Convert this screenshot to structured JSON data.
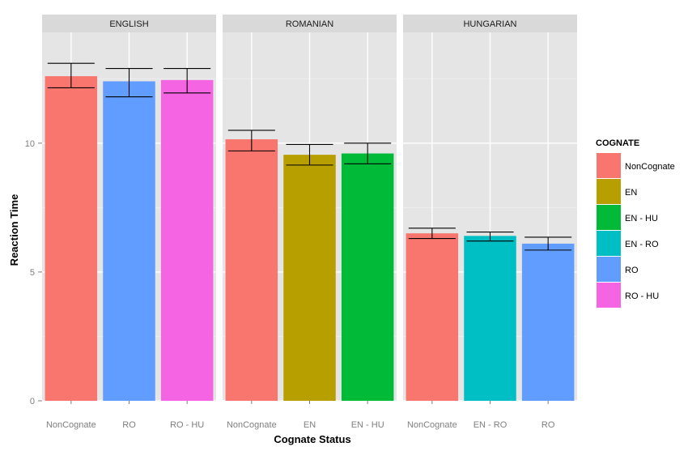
{
  "chart_data": {
    "type": "bar",
    "xlabel": "Cognate Status",
    "ylabel": "Reaction Time",
    "ylim": [
      0,
      14.3
    ],
    "yticks": [
      0,
      5,
      10
    ],
    "grid": true,
    "legend": {
      "title": "COGNATE",
      "position": "right",
      "entries": [
        {
          "label": "NonCognate",
          "color": "#F8766D"
        },
        {
          "label": "EN",
          "color": "#B79F00"
        },
        {
          "label": "EN - HU",
          "color": "#00BA38"
        },
        {
          "label": "EN - RO",
          "color": "#00BFC4"
        },
        {
          "label": "RO",
          "color": "#619CFF"
        },
        {
          "label": "RO - HU",
          "color": "#F564E3"
        }
      ]
    },
    "panels": [
      {
        "title": "ENGLISH",
        "categories": [
          "NonCognate",
          "RO",
          "RO - HU"
        ],
        "values": [
          12.6,
          12.4,
          12.45
        ],
        "error_low": [
          12.15,
          11.8,
          11.95
        ],
        "error_high": [
          13.1,
          12.9,
          12.9
        ]
      },
      {
        "title": "ROMANIAN",
        "categories": [
          "NonCognate",
          "EN",
          "EN - HU"
        ],
        "values": [
          10.15,
          9.55,
          9.6
        ],
        "error_low": [
          9.7,
          9.15,
          9.2
        ],
        "error_high": [
          10.5,
          9.95,
          10.0
        ]
      },
      {
        "title": "HUNGARIAN",
        "categories": [
          "NonCognate",
          "EN - RO",
          "RO"
        ],
        "values": [
          6.5,
          6.4,
          6.1
        ],
        "error_low": [
          6.3,
          6.2,
          5.85
        ],
        "error_high": [
          6.7,
          6.55,
          6.35
        ]
      }
    ]
  }
}
